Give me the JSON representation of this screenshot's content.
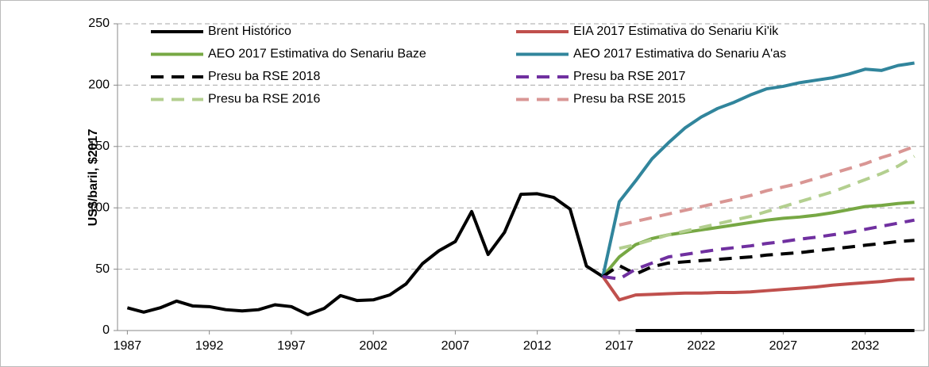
{
  "chart_data": {
    "type": "line",
    "ylabel": "US$/baril, $2017",
    "x": [
      1987,
      1988,
      1989,
      1990,
      1991,
      1992,
      1993,
      1994,
      1995,
      1996,
      1997,
      1998,
      1999,
      2000,
      2001,
      2002,
      2003,
      2004,
      2005,
      2006,
      2007,
      2008,
      2009,
      2010,
      2011,
      2012,
      2013,
      2014,
      2015,
      2016,
      2017,
      2018,
      2019,
      2020,
      2021,
      2022,
      2023,
      2024,
      2025,
      2026,
      2027,
      2028,
      2029,
      2030,
      2031,
      2032,
      2033,
      2034,
      2035
    ],
    "xlim": [
      1986.4,
      2035.6
    ],
    "xticks": [
      1987,
      1992,
      1997,
      2002,
      2007,
      2012,
      2017,
      2022,
      2027,
      2032
    ],
    "ylim": [
      0,
      250
    ],
    "yticks": [
      0,
      50,
      100,
      150,
      200,
      250
    ],
    "grid": true,
    "series": [
      {
        "name": "Brent Histórico",
        "color": "#000000",
        "dashed": false,
        "values": [
          18.5,
          15,
          18.5,
          24,
          20,
          19.5,
          17,
          16,
          17,
          21,
          19.5,
          13,
          18,
          28.5,
          24.5,
          25,
          29,
          38,
          54.5,
          65,
          72.5,
          97,
          62,
          80,
          111,
          111.5,
          108.5,
          99,
          52.5,
          44,
          null,
          0,
          0,
          0,
          0,
          0,
          0,
          0,
          0,
          0,
          0,
          0,
          0,
          0,
          0,
          0,
          0,
          0,
          0
        ]
      },
      {
        "name": "EIA 2017 Estimativa do Senariu Ki'ik",
        "color": "#c0504d",
        "dashed": false,
        "values": [
          null,
          null,
          null,
          null,
          null,
          null,
          null,
          null,
          null,
          null,
          null,
          null,
          null,
          null,
          null,
          null,
          null,
          null,
          null,
          null,
          null,
          null,
          null,
          null,
          null,
          null,
          null,
          null,
          null,
          44,
          25,
          29,
          29.5,
          30,
          30.5,
          30.5,
          31,
          31,
          31.5,
          32.5,
          33.5,
          34.5,
          35.5,
          37,
          38,
          39,
          40,
          41.5,
          42
        ]
      },
      {
        "name": "AEO 2017 Estimativa do Senariu Baze",
        "color": "#77a844",
        "dashed": false,
        "values": [
          null,
          null,
          null,
          null,
          null,
          null,
          null,
          null,
          null,
          null,
          null,
          null,
          null,
          null,
          null,
          null,
          null,
          null,
          null,
          null,
          null,
          null,
          null,
          null,
          null,
          null,
          null,
          null,
          null,
          44,
          60,
          70,
          75,
          78,
          80,
          82,
          84,
          86,
          88,
          90,
          91.5,
          92.5,
          94,
          96,
          98.5,
          101,
          102,
          103.5,
          104.5
        ]
      },
      {
        "name": "AEO 2017 Estimativa do Senariu A'as",
        "color": "#31859c",
        "dashed": false,
        "values": [
          null,
          null,
          null,
          null,
          null,
          null,
          null,
          null,
          null,
          null,
          null,
          null,
          null,
          null,
          null,
          null,
          null,
          null,
          null,
          null,
          null,
          null,
          null,
          null,
          null,
          null,
          null,
          null,
          null,
          44,
          105,
          122,
          140,
          153,
          165,
          174,
          181,
          186,
          192,
          197,
          199,
          202,
          204,
          206,
          209,
          213,
          212,
          216,
          218
        ]
      },
      {
        "name": "Presu ba RSE 2018",
        "color": "#000000",
        "dashed": true,
        "values": [
          null,
          null,
          null,
          null,
          null,
          null,
          null,
          null,
          null,
          null,
          null,
          null,
          null,
          null,
          null,
          null,
          null,
          null,
          null,
          null,
          null,
          null,
          null,
          null,
          null,
          null,
          null,
          null,
          null,
          44,
          53,
          46,
          52,
          55,
          56,
          57,
          58,
          59,
          60,
          61.5,
          62.5,
          63.5,
          65,
          66.5,
          68,
          69.5,
          71,
          72.5,
          73.5
        ]
      },
      {
        "name": "Presu ba RSE 2017",
        "color": "#7030a0",
        "dashed": true,
        "values": [
          null,
          null,
          null,
          null,
          null,
          null,
          null,
          null,
          null,
          null,
          null,
          null,
          null,
          null,
          null,
          null,
          null,
          null,
          null,
          null,
          null,
          null,
          null,
          null,
          null,
          null,
          null,
          null,
          null,
          44,
          42,
          50,
          55,
          60,
          62,
          64,
          66,
          67.5,
          69,
          71,
          72.5,
          74.5,
          76,
          78,
          80,
          82.5,
          85,
          87.5,
          90
        ]
      },
      {
        "name": "Presu ba RSE 2016",
        "color": "#b3cf8f",
        "dashed": true,
        "values": [
          null,
          null,
          null,
          null,
          null,
          null,
          null,
          null,
          null,
          null,
          null,
          null,
          null,
          null,
          null,
          null,
          null,
          null,
          null,
          null,
          null,
          null,
          null,
          null,
          null,
          null,
          null,
          null,
          null,
          null,
          67,
          70,
          74,
          78,
          81,
          84,
          87,
          90,
          93,
          97,
          101,
          105,
          109,
          113,
          118,
          123,
          128,
          134,
          142
        ]
      },
      {
        "name": "Presu ba RSE 2015",
        "color": "#d99694",
        "dashed": true,
        "values": [
          null,
          null,
          null,
          null,
          null,
          null,
          null,
          null,
          null,
          null,
          null,
          null,
          null,
          null,
          null,
          null,
          null,
          null,
          null,
          null,
          null,
          null,
          null,
          null,
          null,
          null,
          null,
          null,
          null,
          null,
          86,
          89,
          92,
          95,
          98,
          101,
          104,
          107,
          110,
          114,
          117,
          120,
          124,
          128,
          132,
          136,
          141,
          145,
          150
        ]
      }
    ]
  }
}
